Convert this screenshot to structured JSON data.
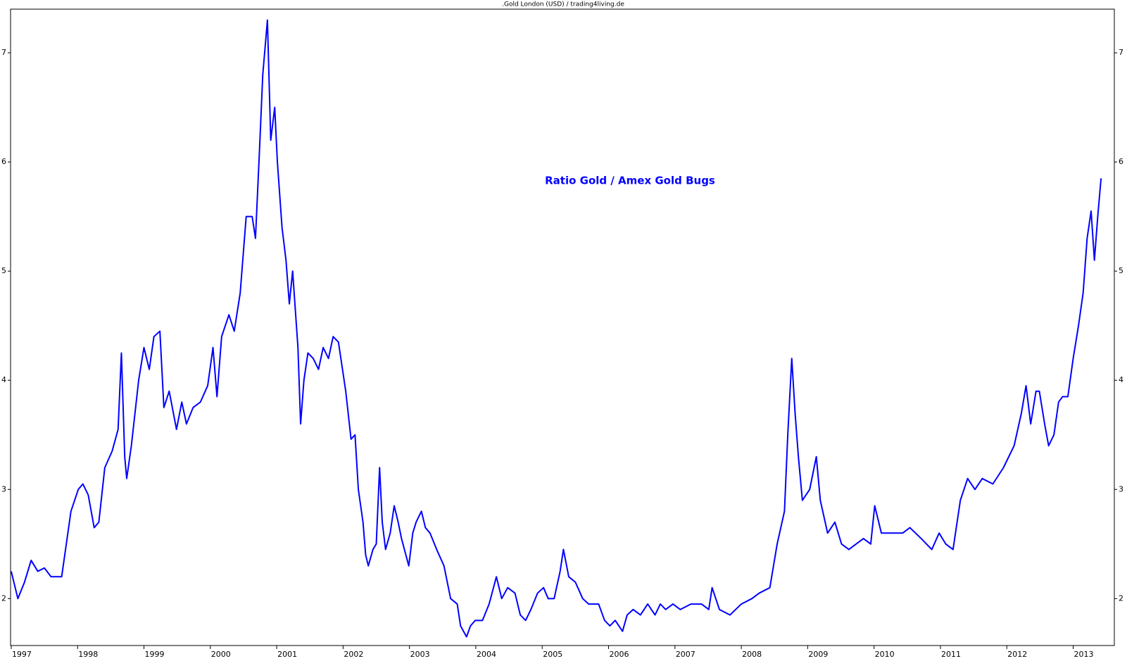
{
  "chart_data": {
    "type": "line",
    "title": ".Gold London (USD) / trading4living.de",
    "annotation": "Ratio Gold / Amex Gold Bugs",
    "x": [
      1997.0,
      1997.1,
      1997.2,
      1997.3,
      1997.4,
      1997.5,
      1997.6,
      1997.7,
      1997.76,
      1997.9,
      1998.01,
      1998.08,
      1998.16,
      1998.25,
      1998.32,
      1998.41,
      1998.52,
      1998.61,
      1998.66,
      1998.71,
      1998.74,
      1998.81,
      1998.92,
      1999.0,
      1999.08,
      1999.15,
      1999.24,
      1999.3,
      1999.38,
      1999.49,
      1999.57,
      1999.64,
      1999.74,
      1999.85,
      1999.96,
      2000.04,
      2000.1,
      2000.17,
      2000.28,
      2000.36,
      2000.45,
      2000.54,
      2000.63,
      2000.68,
      2000.74,
      2000.79,
      2000.86,
      2000.91,
      2000.97,
      2001.01,
      2001.08,
      2001.14,
      2001.19,
      2001.24,
      2001.32,
      2001.36,
      2001.41,
      2001.47,
      2001.55,
      2001.63,
      2001.7,
      2001.78,
      2001.85,
      2001.93,
      2002.04,
      2002.12,
      2002.18,
      2002.23,
      2002.3,
      2002.34,
      2002.38,
      2002.45,
      2002.5,
      2002.55,
      2002.59,
      2002.64,
      2002.71,
      2002.77,
      2002.83,
      2002.88,
      2002.99,
      2003.05,
      2003.1,
      2003.18,
      2003.24,
      2003.31,
      2003.41,
      2003.52,
      2003.62,
      2003.72,
      2003.77,
      2003.86,
      2003.92,
      2003.99,
      2004.1,
      2004.2,
      2004.31,
      2004.39,
      2004.48,
      2004.59,
      2004.67,
      2004.75,
      2004.83,
      2004.93,
      2005.02,
      2005.09,
      2005.18,
      2005.27,
      2005.32,
      2005.4,
      2005.5,
      2005.61,
      2005.7,
      2005.78,
      2005.85,
      2005.94,
      2006.02,
      2006.1,
      2006.21,
      2006.28,
      2006.37,
      2006.48,
      2006.59,
      2006.7,
      2006.78,
      2006.86,
      2006.97,
      2007.08,
      2007.24,
      2007.4,
      2007.51,
      2007.56,
      2007.67,
      2007.83,
      2008.0,
      2008.16,
      2008.27,
      2008.43,
      2008.54,
      2008.65,
      2008.7,
      2008.76,
      2008.81,
      2008.86,
      2008.92,
      2009.03,
      2009.13,
      2009.19,
      2009.3,
      2009.41,
      2009.51,
      2009.62,
      2009.73,
      2009.84,
      2009.95,
      2010.01,
      2010.11,
      2010.27,
      2010.43,
      2010.54,
      2010.71,
      2010.87,
      2010.98,
      2011.08,
      2011.19,
      2011.3,
      2011.41,
      2011.52,
      2011.63,
      2011.79,
      2011.95,
      2012.11,
      2012.22,
      2012.29,
      2012.36,
      2012.44,
      2012.49,
      2012.57,
      2012.63,
      2012.71,
      2012.78,
      2012.84,
      2012.92,
      2013.0,
      2013.08,
      2013.15,
      2013.21,
      2013.27,
      2013.32,
      2013.37,
      2013.42
    ],
    "series": [
      {
        "color": "#0000ff",
        "values": [
          2.25,
          2.0,
          2.15,
          2.35,
          2.25,
          2.28,
          2.2,
          2.2,
          2.2,
          2.8,
          3.0,
          3.05,
          2.95,
          2.65,
          2.7,
          3.2,
          3.35,
          3.55,
          4.25,
          3.3,
          3.1,
          3.4,
          4.0,
          4.3,
          4.1,
          4.4,
          4.45,
          3.75,
          3.9,
          3.55,
          3.8,
          3.6,
          3.75,
          3.8,
          3.95,
          4.3,
          3.85,
          4.4,
          4.6,
          4.45,
          4.8,
          5.5,
          5.5,
          5.3,
          6.1,
          6.8,
          7.3,
          6.2,
          6.5,
          6.0,
          5.4,
          5.1,
          4.7,
          5.0,
          4.3,
          3.6,
          4.0,
          4.25,
          4.2,
          4.1,
          4.3,
          4.2,
          4.4,
          4.35,
          3.9,
          3.46,
          3.5,
          3.0,
          2.7,
          2.4,
          2.3,
          2.45,
          2.5,
          3.2,
          2.7,
          2.45,
          2.6,
          2.85,
          2.7,
          2.55,
          2.3,
          2.6,
          2.7,
          2.8,
          2.65,
          2.6,
          2.45,
          2.3,
          2.0,
          1.95,
          1.75,
          1.65,
          1.75,
          1.8,
          1.8,
          1.95,
          2.2,
          2.0,
          2.1,
          2.05,
          1.85,
          1.8,
          1.9,
          2.05,
          2.1,
          2.0,
          2.0,
          2.25,
          2.45,
          2.2,
          2.15,
          2.0,
          1.95,
          1.95,
          1.95,
          1.8,
          1.75,
          1.8,
          1.7,
          1.85,
          1.9,
          1.85,
          1.95,
          1.85,
          1.95,
          1.9,
          1.95,
          1.9,
          1.95,
          1.95,
          1.9,
          2.1,
          1.9,
          1.85,
          1.95,
          2.0,
          2.05,
          2.1,
          2.5,
          2.8,
          3.5,
          4.2,
          3.7,
          3.3,
          2.9,
          3.0,
          3.3,
          2.9,
          2.6,
          2.7,
          2.5,
          2.45,
          2.5,
          2.55,
          2.5,
          2.85,
          2.6,
          2.6,
          2.6,
          2.65,
          2.55,
          2.45,
          2.6,
          2.5,
          2.45,
          2.9,
          3.1,
          3.0,
          3.1,
          3.05,
          3.2,
          3.4,
          3.7,
          3.95,
          3.6,
          3.9,
          3.9,
          3.6,
          3.4,
          3.5,
          3.8,
          3.85,
          3.85,
          4.2,
          4.5,
          4.8,
          5.3,
          5.55,
          5.1,
          5.5,
          5.85
        ]
      }
    ],
    "xlim": [
      1996.99,
      2013.62
    ],
    "xticks": [
      1997,
      1998,
      1999,
      2000,
      2001,
      2002,
      2003,
      2004,
      2005,
      2006,
      2007,
      2008,
      2009,
      2010,
      2011,
      2012,
      2013
    ],
    "ylim": [
      1.57,
      7.4
    ],
    "yticks": [
      2,
      3,
      4,
      5,
      6,
      7
    ],
    "grid": false
  }
}
